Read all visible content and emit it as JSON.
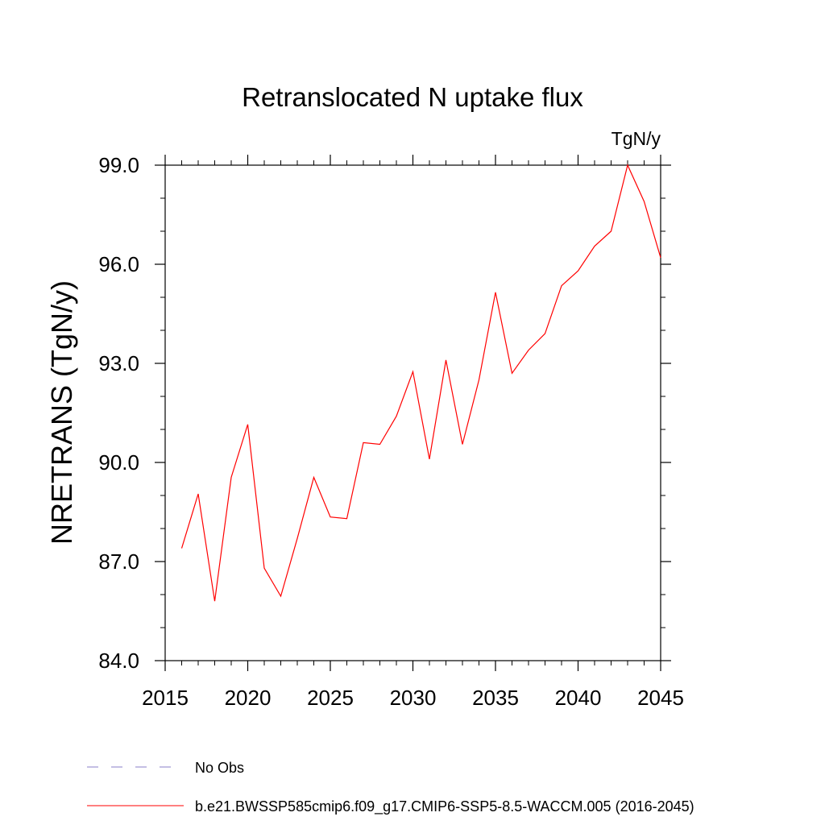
{
  "chart_data": {
    "type": "line",
    "title": "Retranslocated N uptake flux",
    "units": "TgN/y",
    "ylabel": "NRETRANS  (TgN/y)",
    "xlabel": "",
    "xlim": [
      2015,
      2045
    ],
    "ylim": [
      84.0,
      99.0
    ],
    "xticks": [
      2015,
      2020,
      2025,
      2030,
      2035,
      2040,
      2045
    ],
    "xtick_labels": [
      "2015",
      "2020",
      "2025",
      "2030",
      "2035",
      "2040",
      "2045"
    ],
    "yticks": [
      84.0,
      87.0,
      90.0,
      93.0,
      96.0,
      99.0
    ],
    "ytick_labels": [
      "84.0",
      "87.0",
      "90.0",
      "93.0",
      "96.0",
      "99.0"
    ],
    "x_minor_tick_step": 1,
    "y_minor_tick_step": 1,
    "grid": false,
    "legend_position": "bottom",
    "series": [
      {
        "name": "b.e21.BWSSP585cmip6.f09_g17.CMIP6-SSP5-8.5-WACCM.005 (2016-2045)",
        "color": "#ff0000",
        "style": "solid",
        "x": [
          2016,
          2017,
          2018,
          2019,
          2020,
          2021,
          2022,
          2023,
          2024,
          2025,
          2026,
          2027,
          2028,
          2029,
          2030,
          2031,
          2032,
          2033,
          2034,
          2035,
          2036,
          2037,
          2038,
          2039,
          2040,
          2041,
          2042,
          2043,
          2044,
          2045
        ],
        "y": [
          87.4,
          89.05,
          85.8,
          89.55,
          91.15,
          86.8,
          85.95,
          87.7,
          89.55,
          88.35,
          88.3,
          90.6,
          90.55,
          91.4,
          92.75,
          90.1,
          93.1,
          90.55,
          92.5,
          95.15,
          92.7,
          93.4,
          93.9,
          95.35,
          95.8,
          96.55,
          97.0,
          99.0,
          97.9,
          96.2
        ]
      }
    ],
    "legend": [
      {
        "label": "No Obs",
        "color": "#8a7fc8",
        "style": "dashed"
      },
      {
        "label": "b.e21.BWSSP585cmip6.f09_g17.CMIP6-SSP5-8.5-WACCM.005 (2016-2045)",
        "color": "#ff0000",
        "style": "solid"
      }
    ]
  }
}
